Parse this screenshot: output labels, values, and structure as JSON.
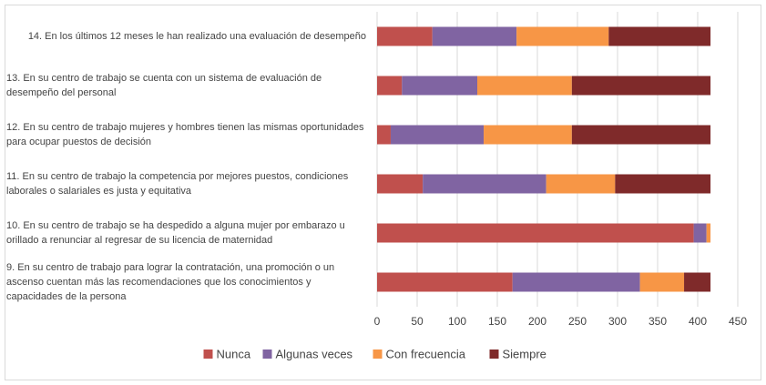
{
  "chart_data": {
    "type": "stacked_barh",
    "categories": [
      "14. En los últimos 12 meses le han realizado una evaluación de desempeño",
      "13. En su centro de trabajo se cuenta con un sistema de evaluación de desempeño del personal",
      "12. En su centro de trabajo mujeres y hombres tienen las mismas oportunidades para ocupar puestos de decisión",
      "11. En su centro de trabajo la competencia por mejores puestos, condiciones laborales o salariales es justa y equitativa",
      "10. En su centro de trabajo se ha despedido a alguna mujer por embarazo u orillado a renunciar al regresar de su licencia de maternidad",
      "9. En su centro de trabajo para lograr la contratación, una promoción o un ascenso cuentan más las recomendaciones que los conocimientos y capacidades de la persona"
    ],
    "series": [
      {
        "name": "Nunca",
        "color": "#c0504d",
        "values": [
          69,
          31,
          17,
          57,
          395,
          169
        ]
      },
      {
        "name": "Algunas veces",
        "color": "#8064a2",
        "values": [
          105,
          94,
          116,
          154,
          16,
          159
        ]
      },
      {
        "name": "Con frecuencia",
        "color": "#f79646",
        "values": [
          115,
          118,
          110,
          86,
          5,
          55
        ]
      },
      {
        "name": "Siempre",
        "color": "#7f2a2a",
        "values": [
          127,
          173,
          173,
          119,
          0,
          33
        ]
      }
    ],
    "xlim": [
      0,
      450
    ],
    "xticks": [
      0,
      50,
      100,
      150,
      200,
      250,
      300,
      350,
      400,
      450
    ],
    "grid": true,
    "legend": "bottom"
  }
}
